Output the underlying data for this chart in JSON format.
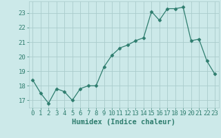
{
  "x": [
    0,
    1,
    2,
    3,
    4,
    5,
    6,
    7,
    8,
    9,
    10,
    11,
    12,
    13,
    14,
    15,
    16,
    17,
    18,
    19,
    20,
    21,
    22,
    23
  ],
  "y": [
    18.4,
    17.5,
    16.8,
    17.8,
    17.6,
    17.0,
    17.8,
    18.0,
    18.0,
    19.3,
    20.1,
    20.6,
    20.8,
    21.1,
    21.3,
    23.1,
    22.5,
    23.3,
    23.3,
    23.4,
    21.1,
    21.2,
    19.7,
    18.8
  ],
  "line_color": "#2e7d6e",
  "marker": "D",
  "marker_size": 2.5,
  "bg_color": "#cce9e9",
  "grid_color": "#aacccc",
  "tick_color": "#2e7d6e",
  "xlabel": "Humidex (Indice chaleur)",
  "xlabel_fontsize": 7.5,
  "xlim": [
    -0.5,
    23.5
  ],
  "ylim": [
    16.5,
    23.8
  ],
  "yticks": [
    17,
    18,
    19,
    20,
    21,
    22,
    23
  ],
  "xticks": [
    0,
    1,
    2,
    3,
    4,
    5,
    6,
    7,
    8,
    9,
    10,
    11,
    12,
    13,
    14,
    15,
    16,
    17,
    18,
    19,
    20,
    21,
    22,
    23
  ],
  "tick_fontsize": 6.5
}
